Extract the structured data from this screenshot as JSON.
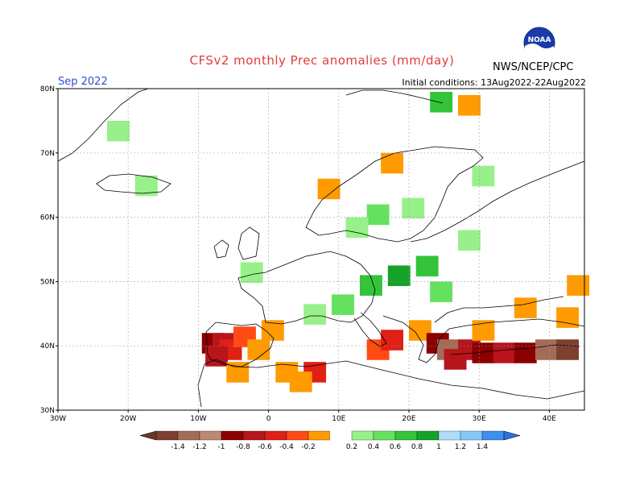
{
  "header": {
    "title": "CFSv2 monthly Prec anomalies (mm/day)",
    "agency": "NWS/NCEP/CPC",
    "logo_text": "NOAA",
    "month": "Sep 2022",
    "initial_conditions": "Initial conditions: 13Aug2022-22Aug2022"
  },
  "map": {
    "lon_range": [
      -30,
      45
    ],
    "lat_range": [
      30,
      80
    ],
    "lat_labels": [
      "80N",
      "70N",
      "60N",
      "50N",
      "40N",
      "30N"
    ],
    "lon_labels": [
      "30W",
      "20W",
      "10W",
      "0",
      "10E",
      "20E",
      "30E",
      "40E"
    ],
    "lat_values": [
      80,
      70,
      60,
      50,
      40,
      30
    ],
    "lon_values": [
      -30,
      -20,
      -10,
      0,
      10,
      20,
      30,
      40
    ],
    "anomaly_cells": [
      {
        "lon": -8.5,
        "lat": 41.0,
        "value": -1.0
      },
      {
        "lon": -7.0,
        "lat": 41.0,
        "value": -0.8
      },
      {
        "lon": -6.0,
        "lat": 40.0,
        "value": -0.6
      },
      {
        "lon": -8.0,
        "lat": 39.0,
        "value": -0.8
      },
      {
        "lon": -4.0,
        "lat": 42.0,
        "value": -0.4
      },
      {
        "lon": -2.0,
        "lat": 40.0,
        "value": -0.2
      },
      {
        "lon": -5.0,
        "lat": 36.5,
        "value": -0.2
      },
      {
        "lon": 0.0,
        "lat": 43.0,
        "value": -0.2
      },
      {
        "lon": 2.0,
        "lat": 36.5,
        "value": -0.2
      },
      {
        "lon": 6.0,
        "lat": 36.5,
        "value": -0.6
      },
      {
        "lon": 4.0,
        "lat": 35.0,
        "value": -0.2
      },
      {
        "lon": 15.0,
        "lat": 40.0,
        "value": -0.4
      },
      {
        "lon": 17.0,
        "lat": 41.5,
        "value": -0.6
      },
      {
        "lon": 21.0,
        "lat": 43.0,
        "value": -0.2
      },
      {
        "lon": 23.5,
        "lat": 41.0,
        "value": -1.0
      },
      {
        "lon": 25.0,
        "lat": 40.0,
        "value": -1.2
      },
      {
        "lon": 26.0,
        "lat": 38.5,
        "value": -0.8
      },
      {
        "lon": 28.0,
        "lat": 40.0,
        "value": -0.8
      },
      {
        "lon": 30.0,
        "lat": 39.5,
        "value": -1.0
      },
      {
        "lon": 33.0,
        "lat": 39.5,
        "value": -0.8
      },
      {
        "lon": 36.0,
        "lat": 39.5,
        "value": -1.0
      },
      {
        "lon": 39.0,
        "lat": 40.0,
        "value": -1.2
      },
      {
        "lon": 42.0,
        "lat": 40.0,
        "value": -1.4
      },
      {
        "lon": 42.0,
        "lat": 45.0,
        "value": -0.2
      },
      {
        "lon": 43.5,
        "lat": 50.0,
        "value": -0.2
      },
      {
        "lon": 36.0,
        "lat": 46.5,
        "value": -0.2
      },
      {
        "lon": 30.0,
        "lat": 43.0,
        "value": -0.2
      },
      {
        "lon": 8.0,
        "lat": 65.0,
        "value": -0.2
      },
      {
        "lon": 17.0,
        "lat": 69.0,
        "value": -0.2
      },
      {
        "lon": 20.0,
        "lat": 62.0,
        "value": 0.2
      },
      {
        "lon": 15.0,
        "lat": 61.0,
        "value": 0.4
      },
      {
        "lon": 12.0,
        "lat": 59.0,
        "value": 0.2
      },
      {
        "lon": 22.0,
        "lat": 53.0,
        "value": 0.6
      },
      {
        "lon": 18.0,
        "lat": 51.5,
        "value": 0.8
      },
      {
        "lon": 14.0,
        "lat": 50.0,
        "value": 0.6
      },
      {
        "lon": 24.0,
        "lat": 49.0,
        "value": 0.4
      },
      {
        "lon": 10.0,
        "lat": 47.0,
        "value": 0.4
      },
      {
        "lon": 6.0,
        "lat": 45.5,
        "value": 0.2
      },
      {
        "lon": 28.0,
        "lat": 57.0,
        "value": 0.2
      },
      {
        "lon": 30.0,
        "lat": 67.0,
        "value": 0.2
      },
      {
        "lon": -3.0,
        "lat": 52.0,
        "value": 0.2
      },
      {
        "lon": -22.0,
        "lat": 74.0,
        "value": 0.2
      },
      {
        "lon": -18.0,
        "lat": 65.5,
        "value": 0.2
      },
      {
        "lon": 24.0,
        "lat": 78.5,
        "value": 0.6
      },
      {
        "lon": 28.0,
        "lat": 78.0,
        "value": -0.2
      }
    ]
  },
  "colorbar": {
    "labels": [
      "-1.4",
      "-1.2",
      "-1",
      "-0.8",
      "-0.6",
      "-0.4",
      "-0.2",
      "0.2",
      "0.4",
      "0.6",
      "0.8",
      "1",
      "1.2",
      "1.4"
    ],
    "colors": [
      "#7b4030",
      "#a46b58",
      "#b98a72",
      "#8b0000",
      "#b8141c",
      "#e01f15",
      "#ff4a14",
      "#ff9b00",
      "#ffffff",
      "#98f08a",
      "#64e25f",
      "#33c43a",
      "#14a22a",
      "#aedcf8",
      "#83c8f6",
      "#3e8ef0"
    ],
    "low_color": "#6b3826",
    "high_color": "#2a6fe0"
  }
}
